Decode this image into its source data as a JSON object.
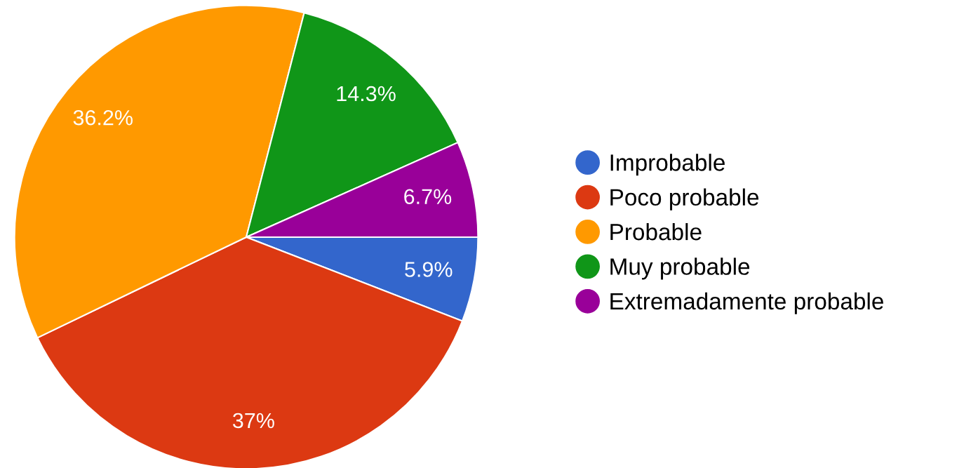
{
  "chart_data": {
    "type": "pie",
    "categories": [
      "Improbable",
      "Poco probable",
      "Probable",
      "Muy probable",
      "Extremadamente probable"
    ],
    "values": [
      5.9,
      37,
      36.2,
      14.3,
      6.7
    ],
    "colors": [
      "#3366cc",
      "#dc3912",
      "#ff9900",
      "#109618",
      "#990099"
    ],
    "value_labels": [
      "5.9%",
      "37%",
      "36.2%",
      "14.3%",
      "6.7%"
    ],
    "legend": "right"
  }
}
